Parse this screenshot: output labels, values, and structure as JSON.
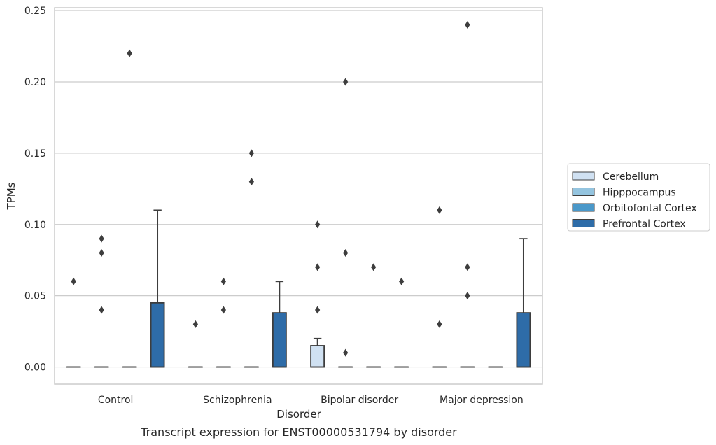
{
  "chart_data": {
    "type": "box",
    "title": "",
    "caption": "Transcript expression for ENST00000531794 by disorder",
    "xlabel": "Disorder",
    "ylabel": "TPMs",
    "ylim": [
      -0.012,
      0.252
    ],
    "yticks": [
      0.0,
      0.05,
      0.1,
      0.15,
      0.2,
      0.25
    ],
    "ytick_labels": [
      "0.00",
      "0.05",
      "0.10",
      "0.15",
      "0.20",
      "0.25"
    ],
    "grid": "horizontal",
    "legend_placement": "right",
    "categories": [
      "Control",
      "Schizophrenia",
      "Bipolar disorder",
      "Major depression"
    ],
    "series": [
      {
        "name": "Cerebellum",
        "color": "#d0e1f2",
        "boxes": [
          {
            "q1": 0,
            "median": 0,
            "q3": 0,
            "whisker_low": 0,
            "whisker_high": 0,
            "outliers": [
              0.06
            ]
          },
          {
            "q1": 0,
            "median": 0,
            "q3": 0,
            "whisker_low": 0,
            "whisker_high": 0,
            "outliers": [
              0.03
            ]
          },
          {
            "q1": 0,
            "median": 0,
            "q3": 0.015,
            "whisker_low": 0,
            "whisker_high": 0.02,
            "outliers": [
              0.04,
              0.07,
              0.1
            ]
          },
          {
            "q1": 0,
            "median": 0,
            "q3": 0,
            "whisker_low": 0,
            "whisker_high": 0,
            "outliers": [
              0.03,
              0.11
            ]
          }
        ]
      },
      {
        "name": "Hipppocampus",
        "color": "#94c4df",
        "boxes": [
          {
            "q1": 0,
            "median": 0,
            "q3": 0,
            "whisker_low": 0,
            "whisker_high": 0,
            "outliers": [
              0.04,
              0.08,
              0.09
            ]
          },
          {
            "q1": 0,
            "median": 0,
            "q3": 0,
            "whisker_low": 0,
            "whisker_high": 0,
            "outliers": [
              0.04,
              0.06
            ]
          },
          {
            "q1": 0,
            "median": 0,
            "q3": 0,
            "whisker_low": 0,
            "whisker_high": 0,
            "outliers": [
              0.01,
              0.08,
              0.2
            ]
          },
          {
            "q1": 0,
            "median": 0,
            "q3": 0,
            "whisker_low": 0,
            "whisker_high": 0,
            "outliers": [
              0.05,
              0.07,
              0.24
            ]
          }
        ]
      },
      {
        "name": "Orbitofontal Cortex",
        "color": "#4a98c9",
        "boxes": [
          {
            "q1": 0,
            "median": 0,
            "q3": 0,
            "whisker_low": 0,
            "whisker_high": 0,
            "outliers": [
              0.22
            ]
          },
          {
            "q1": 0,
            "median": 0,
            "q3": 0,
            "whisker_low": 0,
            "whisker_high": 0,
            "outliers": [
              0.13,
              0.15
            ]
          },
          {
            "q1": 0,
            "median": 0,
            "q3": 0,
            "whisker_low": 0,
            "whisker_high": 0,
            "outliers": [
              0.07
            ]
          },
          {
            "q1": 0,
            "median": 0,
            "q3": 0,
            "whisker_low": 0,
            "whisker_high": 0,
            "outliers": []
          }
        ]
      },
      {
        "name": "Prefrontal Cortex",
        "color": "#2e6ca8",
        "boxes": [
          {
            "q1": 0,
            "median": 0,
            "q3": 0.045,
            "whisker_low": 0,
            "whisker_high": 0.11,
            "outliers": []
          },
          {
            "q1": 0,
            "median": 0,
            "q3": 0.038,
            "whisker_low": 0,
            "whisker_high": 0.06,
            "outliers": []
          },
          {
            "q1": 0,
            "median": 0,
            "q3": 0,
            "whisker_low": 0,
            "whisker_high": 0,
            "outliers": [
              0.06
            ]
          },
          {
            "q1": 0,
            "median": 0,
            "q3": 0.038,
            "whisker_low": 0,
            "whisker_high": 0.09,
            "outliers": []
          }
        ]
      }
    ]
  }
}
